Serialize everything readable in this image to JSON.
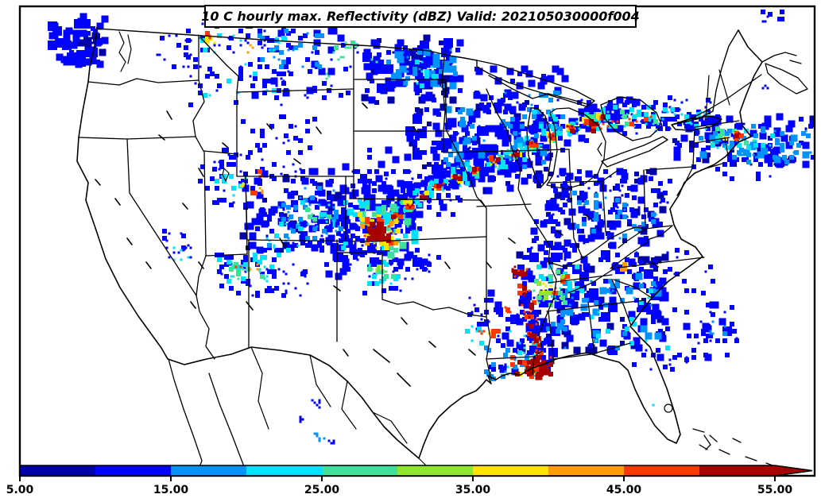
{
  "header": {
    "title": "10 C hourly max. Reflectivity (dBZ) Valid: 202105030000f004"
  },
  "chart_data": {
    "type": "heatmap",
    "title": "10 C hourly max. Reflectivity (dBZ) Valid: 202105030000f004",
    "variable": "Hourly maximum radar reflectivity",
    "units": "dBZ",
    "valid_stamp": "202105030000f004",
    "region": "Contiguous United States with state borders",
    "background": "#FFFFFF",
    "border_color": "#000000",
    "colorbar": {
      "orientation": "horizontal",
      "position": "bottom",
      "range": [
        5,
        55
      ],
      "extend": "max",
      "tick_labels": [
        "5.00",
        "15.00",
        "25.00",
        "35.00",
        "45.00",
        "55.00"
      ],
      "tick_values": [
        5,
        15,
        25,
        35,
        45,
        55
      ],
      "segment_bounds": [
        5,
        10,
        15,
        20,
        25,
        30,
        35,
        40,
        45,
        50,
        55
      ],
      "segment_colors": [
        "#0000A8",
        "#0202FF",
        "#0092FF",
        "#00E0FF",
        "#3FE09A",
        "#90E62F",
        "#FFE400",
        "#FF9C00",
        "#FF3800",
        "#A80000"
      ],
      "extend_color": "#A80000"
    },
    "features": [
      {
        "area": "Central Kansas",
        "max_dbz": "55+",
        "description": "Intense supercell with large 50+ dBZ dark-red core"
      },
      {
        "area": "Kansas to Iowa to Wisconsin/Michigan",
        "max_dbz": "55+",
        "description": "Arcing squall line with embedded intense cells"
      },
      {
        "area": "Mississippi / Louisiana Gulf Coast",
        "max_dbz": "55+",
        "description": "North-south broken line of intense storm cells reaching the coast"
      },
      {
        "area": "Great Lakes to New England and offshore Atlantic",
        "max_dbz": "45-55",
        "description": "Band of rain with embedded strong cells near Massachusetts"
      },
      {
        "area": "Montana / North Dakota / Minnesota",
        "max_dbz": "15-25",
        "description": "Widespread light precipitation"
      },
      {
        "area": "Colorado / Utah / Wyoming / Arizona",
        "max_dbz": "25-45",
        "description": "Scattered mountain showers with isolated strong cells"
      },
      {
        "area": "Ohio Valley and Southeast U.S.",
        "max_dbz": "25-35",
        "description": "Broad area of light to moderate rain"
      },
      {
        "area": "Texas Panhandle",
        "max_dbz": "35-40",
        "description": "Isolated moderate convection"
      },
      {
        "area": "Pacific Northwest offshore",
        "max_dbz": "10-15",
        "description": "Light rain off the Washington coast"
      }
    ]
  }
}
